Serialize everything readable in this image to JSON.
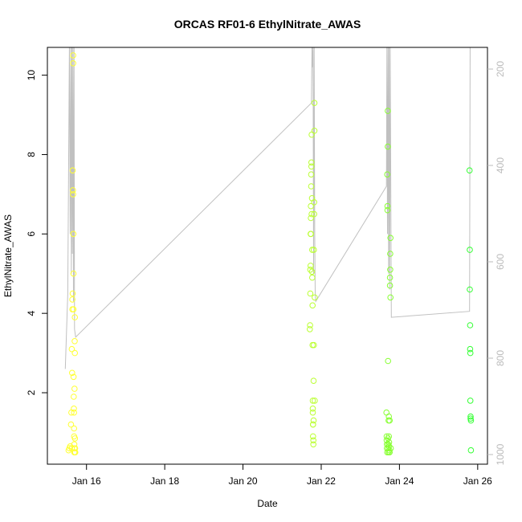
{
  "chart_data": {
    "type": "scatter",
    "title": "ORCAS RF01-6 EthylNitrate_AWAS",
    "xlabel": "Date",
    "ylabel": "EthylNitrate_AWAS",
    "xlim": [
      "2016-01-15T00:00",
      "2016-01-26T06:00"
    ],
    "ylim": [
      0.2,
      10.7
    ],
    "x_ticks": [
      {
        "label": "Jan 16",
        "value": "2016-01-16T00:00"
      },
      {
        "label": "Jan 18",
        "value": "2016-01-18T00:00"
      },
      {
        "label": "Jan 20",
        "value": "2016-01-20T00:00"
      },
      {
        "label": "Jan 22",
        "value": "2016-01-22T00:00"
      },
      {
        "label": "Jan 24",
        "value": "2016-01-24T00:00"
      },
      {
        "label": "Jan 26",
        "value": "2016-01-26T00:00"
      }
    ],
    "y_ticks": [
      2,
      4,
      6,
      8,
      10
    ],
    "right_axis": {
      "reversed": true,
      "ylim": [
        1020,
        155
      ],
      "ticks": [
        200,
        400,
        600,
        800,
        1000
      ],
      "color": "#bbbbbb"
    },
    "grid": false,
    "legend": "none",
    "line_color": "#c0c0c0",
    "series": [
      {
        "color": "#ffff33",
        "points": [
          [
            "2016-01-15T13:00",
            0.55
          ],
          [
            "2016-01-15T13:30",
            0.6
          ],
          [
            "2016-01-15T14:00",
            0.65
          ],
          [
            "2016-01-15T14:30",
            1.2
          ],
          [
            "2016-01-15T14:45",
            1.5
          ],
          [
            "2016-01-15T15:00",
            0.6
          ],
          [
            "2016-01-15T15:00",
            3.1
          ],
          [
            "2016-01-15T15:10",
            2.5
          ],
          [
            "2016-01-15T15:20",
            4.1
          ],
          [
            "2016-01-15T15:20",
            4.35
          ],
          [
            "2016-01-15T15:30",
            4.5
          ],
          [
            "2016-01-15T15:30",
            7.6
          ],
          [
            "2016-01-15T15:40",
            7.1
          ],
          [
            "2016-01-15T15:45",
            7.0
          ],
          [
            "2016-01-15T15:50",
            10.3
          ],
          [
            "2016-01-15T15:50",
            10.5
          ],
          [
            "2016-01-15T15:55",
            6.0
          ],
          [
            "2016-01-15T16:00",
            5.0
          ],
          [
            "2016-01-15T16:00",
            4.1
          ],
          [
            "2016-01-15T16:05",
            2.4
          ],
          [
            "2016-01-15T16:10",
            1.9
          ],
          [
            "2016-01-15T16:15",
            1.6
          ],
          [
            "2016-01-15T16:20",
            1.5
          ],
          [
            "2016-01-15T16:20",
            1.1
          ],
          [
            "2016-01-15T16:25",
            0.9
          ],
          [
            "2016-01-15T16:30",
            0.7
          ],
          [
            "2016-01-15T16:30",
            0.5
          ],
          [
            "2016-01-15T16:35",
            0.6
          ],
          [
            "2016-01-15T16:40",
            0.5
          ],
          [
            "2016-01-15T16:40",
            2.1
          ],
          [
            "2016-01-15T16:45",
            3.3
          ],
          [
            "2016-01-15T16:50",
            3.0
          ],
          [
            "2016-01-15T16:50",
            3.9
          ],
          [
            "2016-01-15T16:55",
            0.85
          ],
          [
            "2016-01-15T17:00",
            0.6
          ],
          [
            "2016-01-15T17:05",
            0.5
          ]
        ]
      },
      {
        "color": "#bbff33",
        "points": [
          [
            "2016-01-21T17:00",
            3.6
          ],
          [
            "2016-01-21T17:10",
            3.7
          ],
          [
            "2016-01-21T17:20",
            4.5
          ],
          [
            "2016-01-21T17:30",
            5.2
          ],
          [
            "2016-01-21T17:30",
            6.0
          ],
          [
            "2016-01-21T17:40",
            6.4
          ],
          [
            "2016-01-21T17:40",
            6.7
          ],
          [
            "2016-01-21T17:50",
            7.2
          ],
          [
            "2016-01-21T17:50",
            7.5
          ],
          [
            "2016-01-21T18:00",
            7.8
          ],
          [
            "2016-01-21T18:00",
            7.7
          ],
          [
            "2016-01-21T18:10",
            8.5
          ],
          [
            "2016-01-21T18:10",
            6.5
          ],
          [
            "2016-01-21T18:20",
            6.9
          ],
          [
            "2016-01-21T18:20",
            5.05
          ],
          [
            "2016-01-21T18:30",
            5.6
          ],
          [
            "2016-01-21T18:30",
            4.9
          ],
          [
            "2016-01-21T18:40",
            4.2
          ],
          [
            "2016-01-21T18:40",
            3.2
          ],
          [
            "2016-01-21T18:50",
            1.8
          ],
          [
            "2016-01-21T18:50",
            1.6
          ],
          [
            "2016-01-21T19:00",
            1.2
          ],
          [
            "2016-01-21T19:00",
            0.9
          ],
          [
            "2016-01-21T19:10",
            0.8
          ],
          [
            "2016-01-21T19:10",
            0.7
          ],
          [
            "2016-01-21T19:20",
            1.3
          ],
          [
            "2016-01-21T19:20",
            2.3
          ],
          [
            "2016-01-21T19:30",
            3.2
          ],
          [
            "2016-01-21T19:30",
            5.6
          ],
          [
            "2016-01-21T19:40",
            6.5
          ],
          [
            "2016-01-21T19:40",
            6.8
          ],
          [
            "2016-01-21T19:50",
            8.6
          ],
          [
            "2016-01-21T19:50",
            9.3
          ],
          [
            "2016-01-21T20:00",
            4.4
          ],
          [
            "2016-01-21T20:00",
            1.8
          ],
          [
            "2016-01-21T17:20",
            5.1
          ],
          [
            "2016-01-21T17:40",
            6.0
          ],
          [
            "2016-01-21T18:50",
            1.5
          ],
          [
            "2016-01-21T19:00",
            1.2
          ]
        ]
      },
      {
        "color": "#88ff33",
        "points": [
          [
            "2016-01-23T16:00",
            1.5
          ],
          [
            "2016-01-23T16:10",
            0.9
          ],
          [
            "2016-01-23T16:10",
            0.8
          ],
          [
            "2016-01-23T16:20",
            0.7
          ],
          [
            "2016-01-23T16:20",
            0.6
          ],
          [
            "2016-01-23T16:30",
            0.5
          ],
          [
            "2016-01-23T16:30",
            7.5
          ],
          [
            "2016-01-23T16:40",
            6.7
          ],
          [
            "2016-01-23T16:40",
            6.6
          ],
          [
            "2016-01-23T16:50",
            8.2
          ],
          [
            "2016-01-23T16:50",
            9.1
          ],
          [
            "2016-01-23T17:00",
            2.8
          ],
          [
            "2016-01-23T17:00",
            0.85
          ],
          [
            "2016-01-23T17:10",
            0.7
          ],
          [
            "2016-01-23T17:10",
            0.6
          ],
          [
            "2016-01-23T17:20",
            0.5
          ],
          [
            "2016-01-23T17:20",
            1.3
          ],
          [
            "2016-01-23T17:30",
            1.4
          ],
          [
            "2016-01-23T17:30",
            0.9
          ],
          [
            "2016-01-23T17:40",
            0.75
          ],
          [
            "2016-01-23T17:40",
            0.65
          ],
          [
            "2016-01-23T17:50",
            0.55
          ],
          [
            "2016-01-23T18:00",
            0.5
          ],
          [
            "2016-01-23T18:00",
            1.3
          ],
          [
            "2016-01-23T18:10",
            4.7
          ],
          [
            "2016-01-23T18:10",
            4.9
          ],
          [
            "2016-01-23T18:20",
            5.1
          ],
          [
            "2016-01-23T18:20",
            5.5
          ],
          [
            "2016-01-23T18:30",
            5.9
          ],
          [
            "2016-01-23T18:30",
            4.4
          ],
          [
            "2016-01-23T18:40",
            0.6
          ]
        ]
      },
      {
        "color": "#33ff33",
        "points": [
          [
            "2016-01-25T19:00",
            7.6
          ],
          [
            "2016-01-25T19:10",
            5.6
          ],
          [
            "2016-01-25T19:10",
            4.6
          ],
          [
            "2016-01-25T19:20",
            3.7
          ],
          [
            "2016-01-25T19:20",
            3.1
          ],
          [
            "2016-01-25T19:30",
            3.0
          ],
          [
            "2016-01-25T19:30",
            1.8
          ],
          [
            "2016-01-25T19:40",
            1.4
          ],
          [
            "2016-01-25T19:40",
            1.35
          ],
          [
            "2016-01-25T19:50",
            1.3
          ],
          [
            "2016-01-25T19:50",
            0.55
          ]
        ]
      }
    ],
    "line_path": [
      [
        "2016-01-15T11:00",
        2.6
      ],
      [
        "2016-01-15T12:30",
        4.5
      ],
      [
        "2016-01-15T13:30",
        10.7
      ],
      [
        "2016-01-15T14:00",
        6.0
      ],
      [
        "2016-01-15T14:20",
        10.7
      ],
      [
        "2016-01-15T14:40",
        5.0
      ],
      [
        "2016-01-15T15:00",
        10.7
      ],
      [
        "2016-01-15T15:20",
        5.5
      ],
      [
        "2016-01-15T15:40",
        10.7
      ],
      [
        "2016-01-15T16:00",
        4.3
      ],
      [
        "2016-01-15T16:20",
        10.7
      ],
      [
        "2016-01-15T16:40",
        3.6
      ],
      [
        "2016-01-15T17:20",
        3.4
      ],
      [
        "2016-01-21T18:00",
        9.3
      ],
      [
        "2016-01-21T18:20",
        10.7
      ],
      [
        "2016-01-21T18:40",
        10.2
      ],
      [
        "2016-01-21T19:00",
        10.7
      ],
      [
        "2016-01-21T19:20",
        5.0
      ],
      [
        "2016-01-21T19:40",
        10.7
      ],
      [
        "2016-01-21T20:00",
        6.0
      ],
      [
        "2016-01-21T20:20",
        4.5
      ],
      [
        "2016-01-21T20:40",
        4.3
      ],
      [
        "2016-01-23T16:00",
        7.2
      ],
      [
        "2016-01-23T16:20",
        10.7
      ],
      [
        "2016-01-23T16:40",
        6.0
      ],
      [
        "2016-01-23T17:00",
        10.7
      ],
      [
        "2016-01-23T17:20",
        5.0
      ],
      [
        "2016-01-23T17:40",
        10.7
      ],
      [
        "2016-01-23T18:00",
        4.6
      ],
      [
        "2016-01-23T18:20",
        10.7
      ],
      [
        "2016-01-23T19:00",
        3.9
      ],
      [
        "2016-01-25T19:00",
        4.05
      ],
      [
        "2016-01-25T19:20",
        10.7
      ]
    ]
  }
}
